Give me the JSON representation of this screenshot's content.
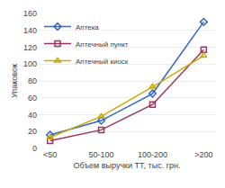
{
  "chart_data": {
    "type": "line",
    "xlabel": "Объем выручки ТТ, тыс. грн.",
    "ylabel": "Упаковок",
    "categories": [
      "<50",
      "50-100",
      "100-200",
      ">200"
    ],
    "series": [
      {
        "name": "Аптека",
        "color": "#3366cc",
        "marker": "diamond",
        "values": [
          16,
          33,
          65,
          150
        ]
      },
      {
        "name": "Аптечный пункт",
        "color": "#993366",
        "marker": "square",
        "values": [
          9,
          22,
          52,
          117
        ]
      },
      {
        "name": "Аптечный киоск",
        "color": "#ccaa00",
        "marker": "triangle",
        "values": [
          13,
          38,
          73,
          110
        ]
      }
    ],
    "ylim": [
      0,
      160
    ],
    "yticks": [
      0,
      20,
      40,
      60,
      80,
      100,
      120,
      140,
      160
    ],
    "grid": true,
    "legend": "upper left"
  }
}
